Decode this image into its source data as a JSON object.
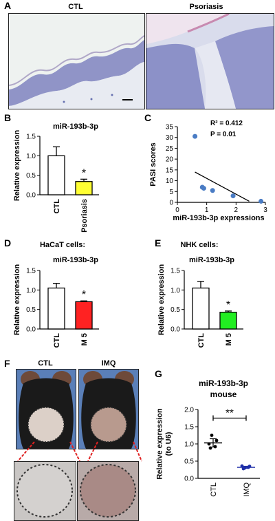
{
  "panels": {
    "A": {
      "letter": "A",
      "left_label": "CTL",
      "right_label": "Psoriasis"
    },
    "B": {
      "letter": "B",
      "title": "miR-193b-3p"
    },
    "C": {
      "letter": "C",
      "r2": "R² = 0.412",
      "p": "P = 0.01"
    },
    "D": {
      "letter": "D",
      "cell": "HaCaT cells:",
      "title": "miR-193b-3p"
    },
    "E": {
      "letter": "E",
      "cell": "NHK cells:",
      "title": "miR-193b-3p"
    },
    "F": {
      "letter": "F",
      "left_label": "CTL",
      "right_label": "IMQ"
    },
    "G": {
      "letter": "G",
      "title_line1": "miR-193b-3p",
      "title_line2": "mouse"
    }
  },
  "chart_data": [
    {
      "id": "B",
      "type": "bar",
      "categories": [
        "CTL",
        "Psoriasis"
      ],
      "values": [
        1.0,
        0.34
      ],
      "errors": [
        0.23,
        0.06
      ],
      "colors": [
        "#ffffff",
        "#ffff33"
      ],
      "ylabel": "Relative expression",
      "ylim": [
        0,
        1.5
      ],
      "yticks": [
        "0.0",
        "0.5",
        "1.0",
        "1.5"
      ],
      "significance": "*"
    },
    {
      "id": "C",
      "type": "scatter",
      "x": [
        0.6,
        0.85,
        0.9,
        1.2,
        1.9,
        2.85
      ],
      "y": [
        30.5,
        7.0,
        6.5,
        5.5,
        3.0,
        0.5
      ],
      "trendline": [
        [
          0.6,
          14.0
        ],
        [
          2.45,
          0.5
        ]
      ],
      "xlabel": "miR-193b-3p expressions",
      "ylabel": "PASI scores",
      "xlim": [
        0,
        3
      ],
      "ylim": [
        0,
        35
      ],
      "xticks": [
        "0",
        "1",
        "2",
        "3"
      ],
      "yticks": [
        "0",
        "5",
        "10",
        "15",
        "20",
        "25",
        "30",
        "35"
      ]
    },
    {
      "id": "D",
      "type": "bar",
      "categories": [
        "CTL",
        "M 5"
      ],
      "values": [
        1.05,
        0.7
      ],
      "errors": [
        0.12,
        0.02
      ],
      "colors": [
        "#ffffff",
        "#ff2222"
      ],
      "ylabel": "Relative expression",
      "ylim": [
        0,
        1.5
      ],
      "yticks": [
        "0.0",
        "0.5",
        "1.0",
        "1.5"
      ],
      "significance": "*"
    },
    {
      "id": "E",
      "type": "bar",
      "categories": [
        "CTL",
        "M 5"
      ],
      "values": [
        1.05,
        0.43
      ],
      "errors": [
        0.17,
        0.03
      ],
      "colors": [
        "#ffffff",
        "#22ee22"
      ],
      "ylabel": "Relative expression",
      "ylim": [
        0,
        1.5
      ],
      "yticks": [
        "0.0",
        "0.5",
        "1.0",
        "1.5"
      ],
      "significance": "*"
    },
    {
      "id": "G",
      "type": "scatter",
      "categories": [
        "CTL",
        "IMQ"
      ],
      "points": [
        [
          1.0,
          1.25,
          0.92,
          0.88,
          1.1
        ],
        [
          0.36,
          0.3,
          0.32,
          0.28,
          0.35
        ]
      ],
      "means": [
        1.03,
        0.32
      ],
      "errors": [
        0.12,
        0.03
      ],
      "colors": [
        "#000000",
        "#1f2fa8"
      ],
      "ylabel": "Relative expression\n(to U6)",
      "ylim": [
        0,
        2.0
      ],
      "yticks": [
        "0.0",
        "0.5",
        "1.0",
        "1.5",
        "2.0"
      ],
      "significance": "**"
    }
  ]
}
